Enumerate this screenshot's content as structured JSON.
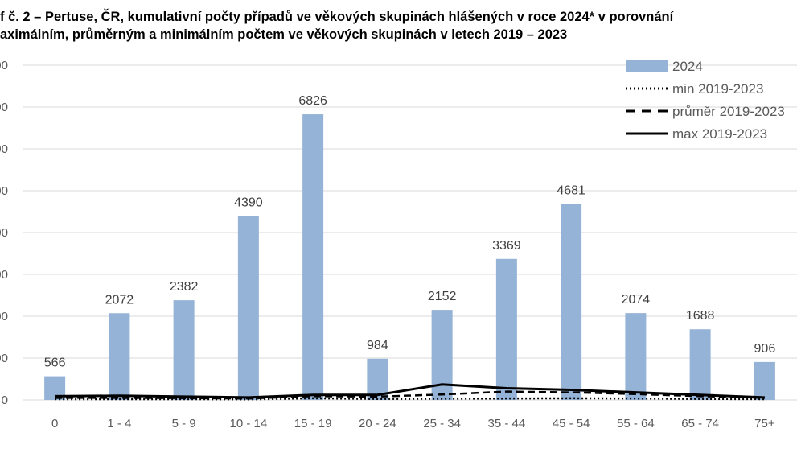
{
  "chart_data": {
    "type": "bar",
    "title_line1": "f č. 2 – Pertuse, ČR, kumulativní počty případů ve věkových skupinách hlášených v roce 2024* v porovnání",
    "title_line2": "aximálním, průměrným a minimálním počtem ve věkových skupinách v  letech 2019 – 2023",
    "categories": [
      "0",
      "1 - 4",
      "5 - 9",
      "10 - 14",
      "15 - 19",
      "20 - 24",
      "25 - 34",
      "35 - 44",
      "45 - 54",
      "55 - 64",
      "65 - 74",
      "75+"
    ],
    "category_labels_visible": [
      "0",
      "1 - 4",
      "5 - 9",
      "10 - 14",
      "15 - 19",
      "20 - 24",
      "25 - 34",
      "35 - 44",
      "45 - 54",
      "55 - 64",
      "65 - 74",
      "75+"
    ],
    "series": [
      {
        "name": "2024",
        "kind": "bar",
        "values": [
          566,
          2072,
          2382,
          4390,
          6826,
          984,
          2152,
          3369,
          4681,
          2074,
          1688,
          906
        ],
        "color": "#95B3D7"
      },
      {
        "name": "min 2019-2023",
        "kind": "line",
        "style": "dotted",
        "values": [
          20,
          20,
          20,
          15,
          40,
          25,
          30,
          35,
          40,
          35,
          25,
          20
        ],
        "color": "#000000"
      },
      {
        "name": "průměr 2019-2023",
        "kind": "line",
        "style": "dashed",
        "values": [
          50,
          50,
          45,
          35,
          90,
          80,
          130,
          200,
          180,
          140,
          90,
          50
        ],
        "color": "#000000"
      },
      {
        "name": "max 2019-2023",
        "kind": "line",
        "style": "solid",
        "values": [
          90,
          100,
          80,
          60,
          120,
          120,
          370,
          280,
          240,
          180,
          120,
          60
        ],
        "color": "#000000"
      }
    ],
    "ylim": [
      0,
      8000
    ],
    "legend_position": "top-right",
    "grid": true
  }
}
